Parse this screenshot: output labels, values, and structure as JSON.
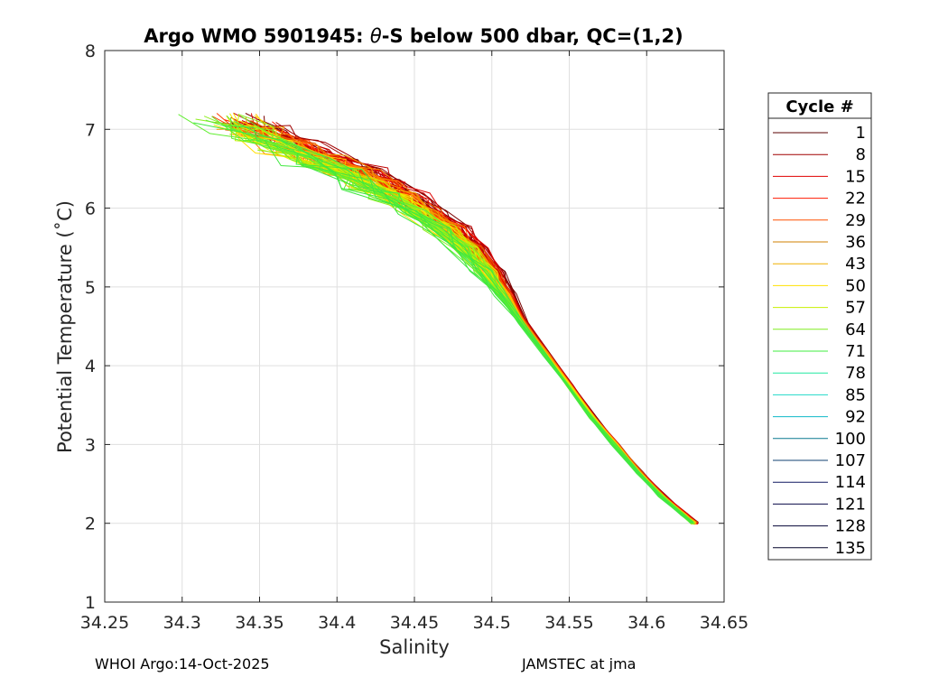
{
  "chart_data": {
    "type": "line",
    "title_prefix": "Argo WMO 5901945: ",
    "title_theta": "θ",
    "title_suffix": "-S below 500 dbar,  QC=(1,2)",
    "xlabel": "Salinity",
    "ylabel": "Potential Temperature (˚C)",
    "xlim": [
      34.25,
      34.65
    ],
    "ylim": [
      1,
      8
    ],
    "xticks": [
      34.25,
      34.3,
      34.35,
      34.4,
      34.45,
      34.5,
      34.55,
      34.6,
      34.65
    ],
    "xtick_labels": [
      "34.25",
      "34.3",
      "34.35",
      "34.4",
      "34.45",
      "34.5",
      "34.55",
      "34.6",
      "34.65"
    ],
    "yticks": [
      1,
      2,
      3,
      4,
      5,
      6,
      7,
      8
    ],
    "ytick_labels": [
      "1",
      "2",
      "3",
      "4",
      "5",
      "6",
      "7",
      "8"
    ],
    "grid": true,
    "legend": {
      "title": "Cycle #",
      "placement": "outside-right",
      "entries": [
        {
          "label": "1",
          "color": "#5a0000"
        },
        {
          "label": "8",
          "color": "#a00000"
        },
        {
          "label": "15",
          "color": "#e00000"
        },
        {
          "label": "22",
          "color": "#ff1a00"
        },
        {
          "label": "29",
          "color": "#ff5000"
        },
        {
          "label": "36",
          "color": "#d08000"
        },
        {
          "label": "43",
          "color": "#f0b000"
        },
        {
          "label": "50",
          "color": "#ffe000"
        },
        {
          "label": "57",
          "color": "#c8f000"
        },
        {
          "label": "64",
          "color": "#80ee20"
        },
        {
          "label": "71",
          "color": "#40ee40"
        },
        {
          "label": "78",
          "color": "#20e8a0"
        },
        {
          "label": "85",
          "color": "#20d8c8"
        },
        {
          "label": "92",
          "color": "#10b8c8"
        },
        {
          "label": "100",
          "color": "#0a7890"
        },
        {
          "label": "107",
          "color": "#104070"
        },
        {
          "label": "114",
          "color": "#101860"
        },
        {
          "label": "121",
          "color": "#0a0a48"
        },
        {
          "label": "128",
          "color": "#050538"
        },
        {
          "label": "135",
          "color": "#020228"
        }
      ]
    },
    "profile_colors": [
      "#7a0000",
      "#a00000",
      "#c00000",
      "#e00000",
      "#ff1a00",
      "#ff4000",
      "#e06000",
      "#ff8000",
      "#f0a000",
      "#ffc000",
      "#ffe000",
      "#e8f000",
      "#c0f000",
      "#90ee20",
      "#60ee30",
      "#40e840"
    ],
    "mean_profile": {
      "salinity": [
        34.631,
        34.625,
        34.61,
        34.595,
        34.58,
        34.565,
        34.55,
        34.535,
        34.52,
        34.508,
        34.498,
        34.485,
        34.47,
        34.455,
        34.44,
        34.425,
        34.41,
        34.39,
        34.37,
        34.35,
        34.33
      ],
      "temperature": [
        2.0,
        2.1,
        2.35,
        2.65,
        3.0,
        3.35,
        3.75,
        4.15,
        4.55,
        4.9,
        5.2,
        5.5,
        5.75,
        5.95,
        6.15,
        6.3,
        6.45,
        6.6,
        6.78,
        6.95,
        7.1
      ]
    }
  },
  "footer": {
    "left": "WHOI Argo:14-Oct-2025",
    "right": "JAMSTEC at jma"
  }
}
